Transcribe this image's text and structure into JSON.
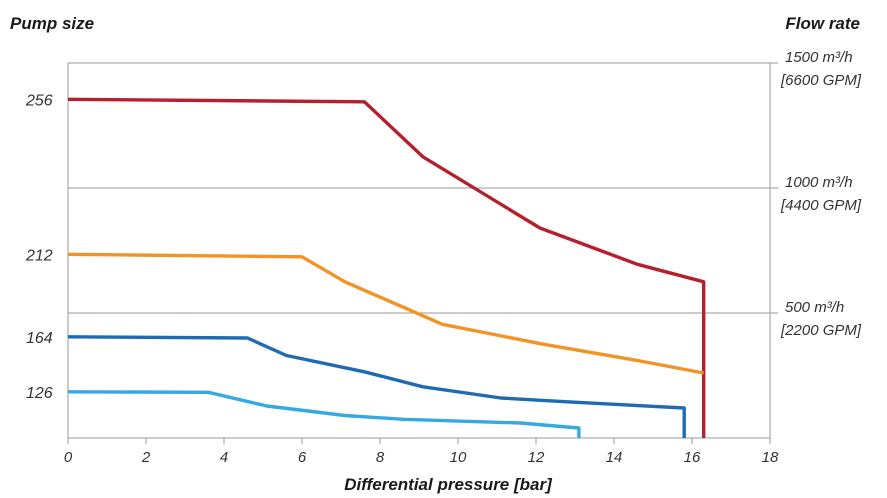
{
  "chart_data": {
    "type": "line",
    "title_left": "Pump size",
    "title_right": "Flow rate",
    "xlabel": "Differential pressure [bar]",
    "xlim": [
      0,
      18
    ],
    "x_ticks": [
      "0",
      "2",
      "4",
      "6",
      "8",
      "10",
      "12",
      "14",
      "16",
      "18"
    ],
    "y_left_ticks": [
      {
        "label": "256",
        "value": 256
      },
      {
        "label": "212",
        "value": 212
      },
      {
        "label": "164",
        "value": 164
      },
      {
        "label": "126",
        "value": 126
      }
    ],
    "y_right_labels": [
      {
        "line1": "1500 m³/h",
        "line2": "[6600 GPM]",
        "value": 1500
      },
      {
        "line1": "1000 m³/h",
        "line2": "[4400 GPM]",
        "value": 1000
      },
      {
        "line1": "500 m³/h",
        "line2": "[2200 GPM]",
        "value": 500
      }
    ],
    "ylim_flow": [
      0,
      1500
    ],
    "grid": "horizontal at 500, 1000, 1500 m³/h",
    "series": [
      {
        "pump_size": "256",
        "color": "#b5202e",
        "points": [
          [
            0,
            1355
          ],
          [
            7.6,
            1345
          ],
          [
            9.1,
            1125
          ],
          [
            12.1,
            840
          ],
          [
            14.6,
            695
          ],
          [
            16.3,
            625
          ],
          [
            16.3,
            0
          ]
        ]
      },
      {
        "pump_size": "212",
        "color": "#f39325",
        "points": [
          [
            0,
            735
          ],
          [
            6.0,
            725
          ],
          [
            7.1,
            625
          ],
          [
            9.6,
            455
          ],
          [
            12.2,
            375
          ],
          [
            14.6,
            310
          ],
          [
            16.3,
            260
          ]
        ]
      },
      {
        "pump_size": "164",
        "color": "#1f6bb3",
        "points": [
          [
            0,
            405
          ],
          [
            4.6,
            400
          ],
          [
            5.6,
            330
          ],
          [
            7.6,
            265
          ],
          [
            9.1,
            205
          ],
          [
            11.1,
            160
          ],
          [
            12.8,
            145
          ],
          [
            15.8,
            120
          ],
          [
            15.8,
            0
          ]
        ]
      },
      {
        "pump_size": "126",
        "color": "#36a9e1",
        "points": [
          [
            0,
            185
          ],
          [
            3.6,
            183
          ],
          [
            5.1,
            128
          ],
          [
            7.1,
            90
          ],
          [
            8.6,
            75
          ],
          [
            11.6,
            60
          ],
          [
            13.1,
            40
          ],
          [
            13.1,
            0
          ]
        ]
      }
    ]
  }
}
